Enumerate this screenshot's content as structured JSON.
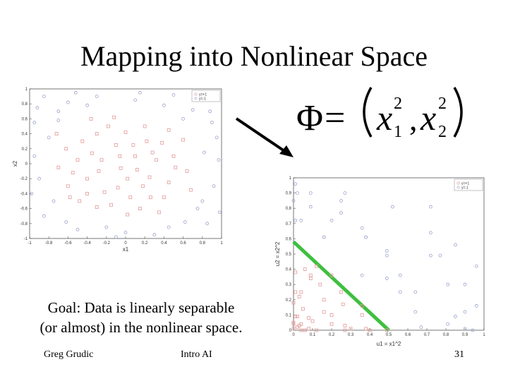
{
  "slide": {
    "title": "Mapping into Nonlinear Space",
    "goal_line1": "Goal: Data is linearly separable",
    "goal_line2": "(or almost) in the nonlinear space.",
    "footer_left": "Greg Grudic",
    "footer_center": "Intro AI",
    "page_number": "31",
    "formula": {
      "phi": "Φ",
      "equals": "=",
      "var1": "x",
      "sub1": "1",
      "sup1": "2",
      "comma": ",",
      "var2": "x",
      "sub2": "2",
      "sup2": "2"
    }
  },
  "colors": {
    "class_pos": "#e29a9a",
    "class_neg": "#9aa3cc",
    "separator": "#3fbf3f",
    "axis": "#555555"
  },
  "chart_data": [
    {
      "type": "scatter",
      "xlabel": "x1",
      "ylabel": "x2",
      "xlim": [
        -1,
        1
      ],
      "ylim": [
        -1,
        1
      ],
      "xticks": [
        "-1",
        "-0.8",
        "-0.6",
        "-0.4",
        "-0.2",
        "0",
        "0.2",
        "0.4",
        "0.6",
        "0.8",
        "1"
      ],
      "yticks": [
        "1",
        "0.8",
        "0.6",
        "0.4",
        "0.2",
        "0",
        "-0.2",
        "-0.4",
        "-0.6",
        "-0.8",
        "-1"
      ],
      "legend": [
        "y=+1",
        "y=-1"
      ],
      "legend_position": "top-right",
      "series": [
        {
          "name": "y=+1",
          "marker": "square",
          "points": [
            [
              -0.22,
              -0.38
            ],
            [
              -0.05,
              -0.06
            ],
            [
              0.02,
              -0.2
            ],
            [
              -0.35,
              0.14
            ],
            [
              -0.1,
              0.25
            ],
            [
              0.18,
              -0.3
            ],
            [
              -0.4,
              -0.4
            ],
            [
              0.25,
              -0.18
            ],
            [
              0.1,
              0.1
            ],
            [
              -0.28,
              -0.1
            ],
            [
              0.32,
              0.05
            ],
            [
              -0.15,
              -0.55
            ],
            [
              0.05,
              -0.45
            ],
            [
              -0.5,
              0.05
            ],
            [
              0.22,
              0.3
            ],
            [
              -0.3,
              0.4
            ],
            [
              0.4,
              -0.45
            ],
            [
              -0.6,
              -0.3
            ],
            [
              0.0,
              0.42
            ],
            [
              -0.45,
              0.3
            ],
            [
              0.45,
              -0.25
            ],
            [
              -0.18,
              0.5
            ],
            [
              0.38,
              0.28
            ],
            [
              -0.62,
              0.2
            ],
            [
              0.5,
              0.1
            ],
            [
              0.15,
              -0.6
            ],
            [
              -0.08,
              -0.32
            ],
            [
              0.12,
              -0.08
            ],
            [
              -0.4,
              -0.2
            ],
            [
              0.28,
              0.15
            ],
            [
              -0.25,
              0.05
            ],
            [
              0.08,
              0.25
            ],
            [
              -0.55,
              -0.12
            ],
            [
              0.52,
              -0.05
            ],
            [
              -0.3,
              -0.58
            ],
            [
              0.6,
              0.32
            ],
            [
              -0.7,
              -0.05
            ],
            [
              0.35,
              -0.65
            ],
            [
              -0.12,
              0.62
            ],
            [
              0.2,
              0.5
            ],
            [
              -0.48,
              -0.5
            ],
            [
              0.45,
              0.45
            ],
            [
              -0.06,
              0.1
            ],
            [
              0.02,
              -0.68
            ],
            [
              -0.72,
              0.4
            ],
            [
              0.68,
              -0.35
            ],
            [
              -0.36,
              0.6
            ],
            [
              0.64,
              -0.1
            ],
            [
              -0.58,
              -0.45
            ],
            [
              0.26,
              -0.45
            ]
          ]
        },
        {
          "name": "y=-1",
          "marker": "circle",
          "points": [
            [
              -0.85,
              0.9
            ],
            [
              -0.6,
              0.82
            ],
            [
              -0.3,
              0.9
            ],
            [
              0.1,
              0.85
            ],
            [
              0.5,
              0.92
            ],
            [
              0.88,
              0.7
            ],
            [
              -0.95,
              0.55
            ],
            [
              0.95,
              0.35
            ],
            [
              -0.9,
              -0.2
            ],
            [
              0.92,
              -0.3
            ],
            [
              -0.85,
              -0.7
            ],
            [
              -0.5,
              -0.88
            ],
            [
              0.0,
              -0.92
            ],
            [
              0.45,
              -0.85
            ],
            [
              0.85,
              -0.8
            ],
            [
              -0.7,
              0.7
            ],
            [
              0.7,
              0.72
            ],
            [
              -0.95,
              0.1
            ],
            [
              0.97,
              0.05
            ],
            [
              -0.75,
              -0.5
            ],
            [
              0.75,
              -0.6
            ],
            [
              0.3,
              -0.95
            ],
            [
              -0.2,
              -0.85
            ],
            [
              0.6,
              0.6
            ],
            [
              -0.62,
              -0.78
            ],
            [
              0.9,
              0.55
            ],
            [
              -0.92,
              0.75
            ],
            [
              0.4,
              0.78
            ],
            [
              -0.4,
              0.78
            ],
            [
              0.8,
              -0.5
            ],
            [
              -0.8,
              0.35
            ],
            [
              0.82,
              0.15
            ],
            [
              0.15,
              0.95
            ],
            [
              -0.1,
              -0.98
            ],
            [
              0.62,
              -0.78
            ],
            [
              -0.98,
              -0.4
            ],
            [
              0.98,
              -0.65
            ],
            [
              -0.7,
              0.58
            ],
            [
              0.72,
              0.9
            ],
            [
              -0.52,
              0.95
            ]
          ]
        }
      ]
    },
    {
      "type": "scatter",
      "xlabel": "u1 = x1^2",
      "ylabel": "u2 = x2^2",
      "xlim": [
        0,
        1
      ],
      "ylim": [
        0,
        1
      ],
      "xticks": [
        "0",
        "0.1",
        "0.2",
        "0.3",
        "0.4",
        "0.5",
        "0.6",
        "0.7",
        "0.8",
        "0.9",
        "1"
      ],
      "yticks": [
        "1",
        "0.9",
        "0.8",
        "0.7",
        "0.6",
        "0.5",
        "0.4",
        "0.3",
        "0.2",
        "0.1",
        "0"
      ],
      "legend": [
        "y=+1",
        "y=-1"
      ],
      "legend_position": "top-right",
      "separator": {
        "x": [
          0.0,
          0.5
        ],
        "y": [
          0.58,
          0.0
        ]
      },
      "series": [
        {
          "name": "y=+1",
          "marker": "square",
          "points": [
            [
              0.05,
              0.14
            ],
            [
              0.0,
              0.04
            ],
            [
              0.04,
              0.04
            ],
            [
              0.12,
              0.0
            ],
            [
              0.02,
              0.09
            ],
            [
              0.03,
              0.03
            ],
            [
              0.0,
              0.05
            ],
            [
              0.16,
              0.2
            ],
            [
              0.08,
              0.01
            ],
            [
              0.2,
              0.1
            ],
            [
              0.01,
              0.09
            ],
            [
              0.25,
              0.25
            ],
            [
              0.09,
              0.36
            ],
            [
              0.2,
              0.04
            ],
            [
              0.4,
              0.0
            ],
            [
              0.03,
              0.22
            ],
            [
              0.06,
              0.4
            ],
            [
              0.36,
              0.16
            ],
            [
              0.0,
              0.18
            ],
            [
              0.04,
              0.0
            ],
            [
              0.2,
              0.36
            ],
            [
              0.02,
              0.02
            ],
            [
              0.16,
              0.12
            ],
            [
              0.08,
              0.08
            ],
            [
              0.27,
              0.03
            ],
            [
              0.38,
              0.01
            ],
            [
              0.01,
              0.25
            ],
            [
              0.14,
              0.3
            ],
            [
              0.26,
              0.17
            ],
            [
              0.0,
              0.01
            ],
            [
              0.06,
              0.0
            ],
            [
              0.1,
              0.06
            ],
            [
              0.3,
              0.01
            ],
            [
              0.27,
              0.0
            ],
            [
              0.09,
              0.34
            ],
            [
              0.36,
              0.1
            ],
            [
              0.49,
              0.0
            ],
            [
              0.12,
              0.42
            ],
            [
              0.01,
              0.38
            ],
            [
              0.04,
              0.25
            ]
          ]
        },
        {
          "name": "y=-1",
          "marker": "circle",
          "points": [
            [
              0.72,
              0.81
            ],
            [
              0.36,
              0.67
            ],
            [
              0.09,
              0.81
            ],
            [
              0.01,
              0.72
            ],
            [
              0.25,
              0.85
            ],
            [
              0.77,
              0.49
            ],
            [
              0.9,
              0.3
            ],
            [
              0.9,
              0.12
            ],
            [
              0.81,
              0.04
            ],
            [
              0.85,
              0.09
            ],
            [
              0.72,
              0.49
            ],
            [
              0.25,
              0.77
            ],
            [
              0.0,
              0.85
            ],
            [
              0.2,
              0.72
            ],
            [
              0.72,
              0.64
            ],
            [
              0.49,
              0.49
            ],
            [
              0.49,
              0.52
            ],
            [
              0.9,
              0.01
            ],
            [
              0.94,
              0.0
            ],
            [
              0.56,
              0.25
            ],
            [
              0.56,
              0.36
            ],
            [
              0.09,
              0.9
            ],
            [
              0.04,
              0.72
            ],
            [
              0.36,
              0.36
            ],
            [
              0.38,
              0.61
            ],
            [
              0.81,
              0.3
            ],
            [
              0.85,
              0.56
            ],
            [
              0.16,
              0.61
            ],
            [
              0.16,
              0.61
            ],
            [
              0.64,
              0.25
            ],
            [
              0.64,
              0.12
            ],
            [
              0.67,
              0.02
            ],
            [
              0.02,
              0.9
            ],
            [
              0.01,
              0.96
            ],
            [
              0.38,
              0.61
            ],
            [
              0.96,
              0.16
            ],
            [
              0.96,
              0.42
            ],
            [
              0.49,
              0.34
            ],
            [
              0.52,
              0.81
            ],
            [
              0.27,
              0.9
            ]
          ]
        }
      ]
    }
  ]
}
